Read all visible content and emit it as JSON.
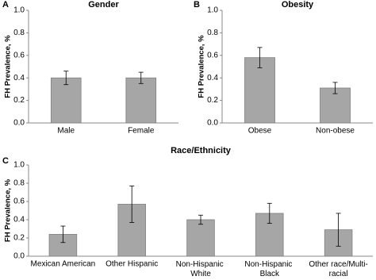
{
  "chart_data": [
    {
      "type": "bar",
      "panel": "A",
      "title": "Gender",
      "y_label": "FH Prevalence, %",
      "categories": [
        "Male",
        "Female"
      ],
      "values": [
        0.4,
        0.4
      ],
      "errors": [
        0.06,
        0.05
      ],
      "color": "#a6a6a6",
      "ylim": [
        0,
        1
      ],
      "grid": false,
      "yticks": [
        {
          "value": 0,
          "label": "0.0"
        },
        0.2,
        0.4,
        0.6,
        0.8,
        {
          "value": 1,
          "label": "1.0"
        }
      ]
    },
    {
      "type": "bar",
      "panel": "B",
      "title": "Obesity",
      "y_label": "FH Prevalence, %",
      "categories": [
        "Obese",
        "Non-obese"
      ],
      "values": [
        0.58,
        0.31
      ],
      "errors": [
        0.09,
        0.05
      ],
      "color": "#a6a6a6",
      "ylim": [
        0,
        1
      ],
      "grid": false,
      "yticks": [
        {
          "value": 0,
          "label": "0.0"
        },
        0.2,
        0.4,
        0.6,
        0.8,
        {
          "value": 1,
          "label": "1.0"
        }
      ]
    },
    {
      "type": "bar",
      "panel": "C",
      "title": "Race/Ethnicity",
      "y_label": "FH Prevalence, %",
      "categories": [
        "Mexican American",
        "Other Hispanic",
        "Non-Hispanic White",
        "Non-Hispanic Black",
        "Other race/Multi-racial"
      ],
      "values": [
        0.24,
        0.57,
        0.4,
        0.47,
        0.29
      ],
      "errors": [
        0.09,
        0.2,
        0.05,
        0.11,
        0.18
      ],
      "color": "#a6a6a6",
      "ylim": [
        0,
        1
      ],
      "grid": false,
      "yticks": [
        {
          "value": 0,
          "label": "0.0"
        },
        0.2,
        0.4,
        0.6,
        0.8,
        {
          "value": 1,
          "label": "1.0"
        }
      ]
    }
  ]
}
